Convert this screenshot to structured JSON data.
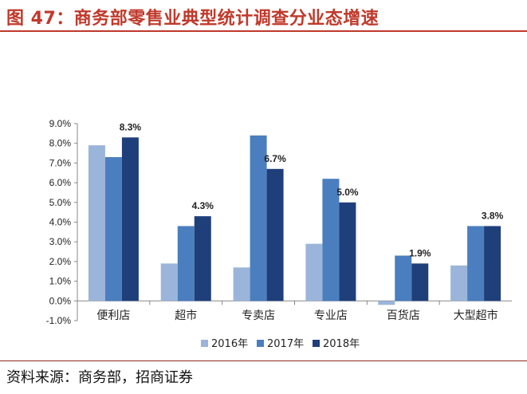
{
  "header": {
    "title": "图 47：商务部零售业典型统计调查分业态增速"
  },
  "footer": {
    "source": "资料来源：商务部，招商证券"
  },
  "chart_data": {
    "type": "bar",
    "categories": [
      "便利店",
      "超市",
      "专卖店",
      "专业店",
      "百货店",
      "大型超市"
    ],
    "series": [
      {
        "name": "2016年",
        "color": "#9bb5da",
        "values": [
          7.9,
          1.9,
          1.7,
          2.9,
          -0.2,
          1.8
        ]
      },
      {
        "name": "2017年",
        "color": "#4a7ebf",
        "values": [
          7.3,
          3.8,
          8.4,
          6.2,
          2.3,
          3.8
        ]
      },
      {
        "name": "2018年",
        "color": "#1f3f7a",
        "values": [
          8.3,
          4.3,
          6.7,
          5.0,
          1.9,
          3.8
        ]
      }
    ],
    "data_labels": [
      "8.3%",
      "4.3%",
      "6.7%",
      "5.0%",
      "1.9%",
      "3.8%"
    ],
    "yticks": [
      "9.0%",
      "8.0%",
      "7.0%",
      "6.0%",
      "5.0%",
      "4.0%",
      "3.0%",
      "2.0%",
      "1.0%",
      "0.0%",
      "-1.0%"
    ],
    "ylim": [
      -1.0,
      9.0
    ],
    "grid": false,
    "legend_position": "bottom"
  }
}
